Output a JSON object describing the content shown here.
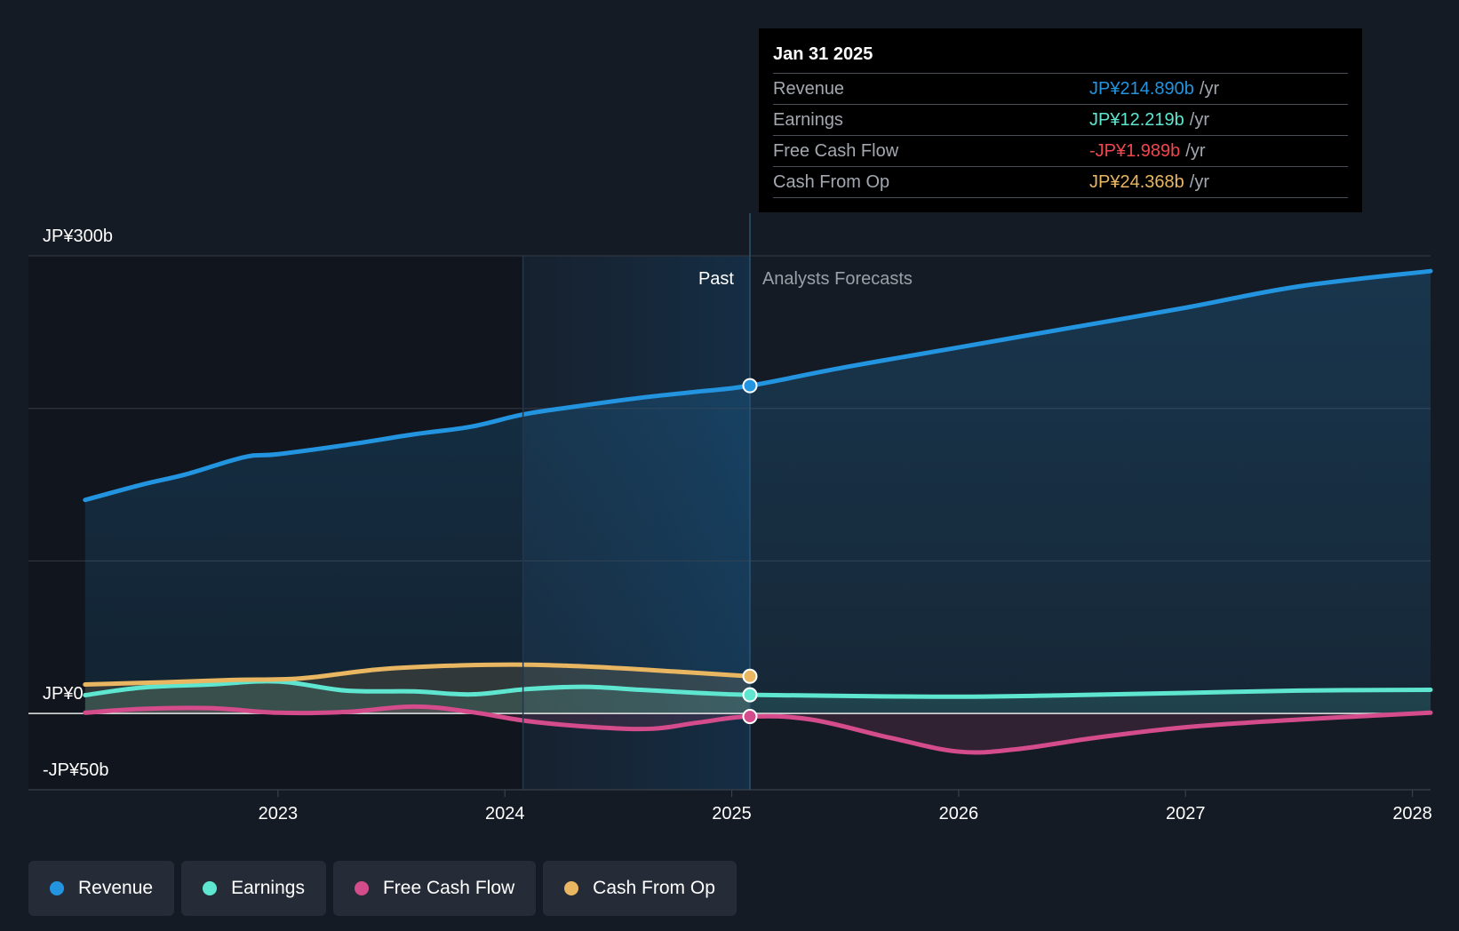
{
  "colors": {
    "background": "#151b24",
    "revenue": "#2394df",
    "earnings": "#5ee6d0",
    "free_cash_flow": "#d44c8c",
    "cash_from_op": "#e9b661",
    "negative": "#f0474f",
    "grid": "#2f353e"
  },
  "tooltip": {
    "date": "Jan 31 2025",
    "rows": [
      {
        "name": "Revenue",
        "value": "JP¥214.890b",
        "unit": "/yr",
        "color": "#2394df"
      },
      {
        "name": "Earnings",
        "value": "JP¥12.219b",
        "unit": "/yr",
        "color": "#5ee6d0"
      },
      {
        "name": "Free Cash Flow",
        "value": "-JP¥1.989b",
        "unit": "/yr",
        "color": "#f0474f"
      },
      {
        "name": "Cash From Op",
        "value": "JP¥24.368b",
        "unit": "/yr",
        "color": "#e9b661"
      }
    ]
  },
  "legend": [
    {
      "label": "Revenue",
      "color": "#2394df"
    },
    {
      "label": "Earnings",
      "color": "#5ee6d0"
    },
    {
      "label": "Free Cash Flow",
      "color": "#d44c8c"
    },
    {
      "label": "Cash From Op",
      "color": "#e9b661"
    }
  ],
  "chart_data": {
    "type": "line",
    "title": "",
    "xlabel": "",
    "ylabel": "",
    "y_unit": "JP¥ billions",
    "ylim": [
      -50,
      300
    ],
    "xlim": [
      2021.9,
      2028.08
    ],
    "y_tick_labels": [
      {
        "value": 300,
        "label": "JP¥300b"
      },
      {
        "value": 0,
        "label": "JP¥0"
      },
      {
        "value": -50,
        "label": "-JP¥50b"
      }
    ],
    "x_ticks": [
      2023,
      2024,
      2025,
      2026,
      2027,
      2028
    ],
    "x_tick_labels": [
      "2023",
      "2024",
      "2025",
      "2026",
      "2027",
      "2028"
    ],
    "past_label": "Past",
    "forecast_label": "Analysts Forecasts",
    "past_start": 2022.15,
    "highlight_start": 2024.08,
    "divider_date": 2025.08,
    "series": [
      {
        "name": "Revenue",
        "color": "#2394df",
        "points": [
          [
            2022.15,
            140
          ],
          [
            2022.4,
            150
          ],
          [
            2022.6,
            157
          ],
          [
            2022.85,
            168
          ],
          [
            2023.0,
            170
          ],
          [
            2023.3,
            176
          ],
          [
            2023.6,
            183
          ],
          [
            2023.85,
            188
          ],
          [
            2024.08,
            196
          ],
          [
            2024.3,
            201
          ],
          [
            2024.6,
            207
          ],
          [
            2024.85,
            211
          ],
          [
            2025.08,
            214.89
          ],
          [
            2025.5,
            227
          ],
          [
            2026.0,
            240
          ],
          [
            2026.5,
            253
          ],
          [
            2027.0,
            266
          ],
          [
            2027.5,
            280
          ],
          [
            2028.08,
            290
          ]
        ]
      },
      {
        "name": "Earnings",
        "color": "#5ee6d0",
        "points": [
          [
            2022.15,
            12
          ],
          [
            2022.4,
            17
          ],
          [
            2022.7,
            19
          ],
          [
            2023.0,
            21
          ],
          [
            2023.3,
            15
          ],
          [
            2023.6,
            14.5
          ],
          [
            2023.85,
            12.5
          ],
          [
            2024.1,
            16
          ],
          [
            2024.35,
            17.5
          ],
          [
            2024.6,
            15.5
          ],
          [
            2024.85,
            13.5
          ],
          [
            2025.08,
            12.22
          ],
          [
            2025.5,
            11.5
          ],
          [
            2026.0,
            11
          ],
          [
            2026.5,
            12
          ],
          [
            2027.0,
            13.5
          ],
          [
            2027.5,
            15
          ],
          [
            2028.08,
            15.5
          ]
        ]
      },
      {
        "name": "Free Cash Flow",
        "color": "#d44c8c",
        "points": [
          [
            2022.15,
            0.5
          ],
          [
            2022.4,
            3
          ],
          [
            2022.7,
            3.5
          ],
          [
            2023.0,
            0.5
          ],
          [
            2023.3,
            1
          ],
          [
            2023.6,
            4.5
          ],
          [
            2023.85,
            1
          ],
          [
            2024.1,
            -5
          ],
          [
            2024.4,
            -9
          ],
          [
            2024.65,
            -10
          ],
          [
            2024.85,
            -6
          ],
          [
            2025.08,
            -1.99
          ],
          [
            2025.35,
            -4
          ],
          [
            2025.7,
            -16
          ],
          [
            2026.0,
            -25
          ],
          [
            2026.25,
            -23.5
          ],
          [
            2026.6,
            -16
          ],
          [
            2027.0,
            -9
          ],
          [
            2027.5,
            -4
          ],
          [
            2028.08,
            0.5
          ]
        ]
      },
      {
        "name": "Cash From Op",
        "color": "#e9b661",
        "points": [
          [
            2022.15,
            19
          ],
          [
            2022.5,
            20.5
          ],
          [
            2022.8,
            22
          ],
          [
            2023.1,
            23
          ],
          [
            2023.45,
            29
          ],
          [
            2023.8,
            31.5
          ],
          [
            2024.1,
            32
          ],
          [
            2024.4,
            30.5
          ],
          [
            2024.75,
            27.5
          ],
          [
            2025.08,
            24.37
          ]
        ]
      }
    ]
  }
}
